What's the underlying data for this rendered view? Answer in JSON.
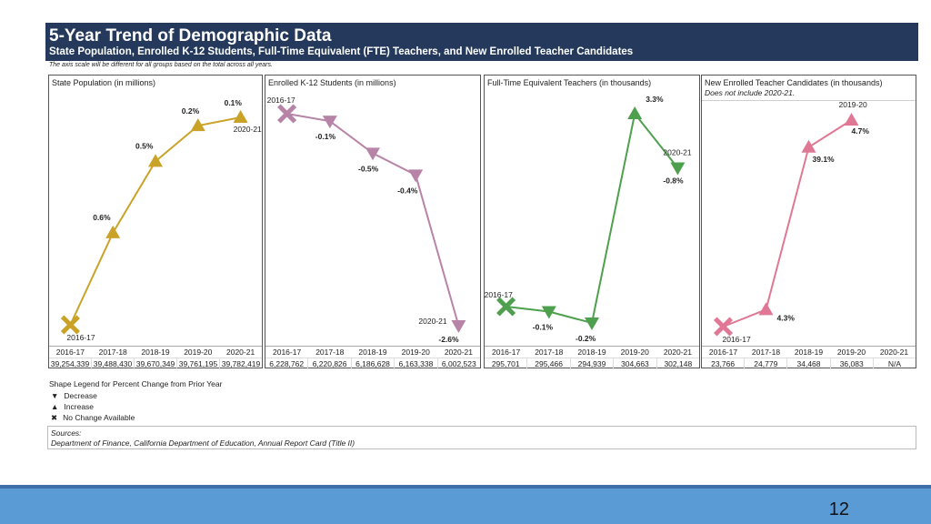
{
  "header": {
    "title": "5-Year Trend of Demographic Data",
    "subtitle": "State Population, Enrolled K-12 Students,  Full-Time Equivalent (FTE) Teachers, and New Enrolled Teacher Candidates"
  },
  "note": "The axis scale will be different for all groups based on the total across all years.",
  "chart_data": [
    {
      "type": "line",
      "title": "State Population (in millions)",
      "color": "#c9a227",
      "categories": [
        "2016-17",
        "2017-18",
        "2018-19",
        "2019-20",
        "2020-21"
      ],
      "table_values": [
        "39,254,339",
        "39,488,430",
        "39,670,349",
        "39,761,195",
        "39,782,419"
      ],
      "values": [
        39254339,
        39488430,
        39670349,
        39761195,
        39782419
      ],
      "shapes": [
        "x",
        "up",
        "up",
        "up",
        "up"
      ],
      "pct_labels": [
        "",
        "0.6%",
        "0.5%",
        "0.2%",
        "0.1%"
      ],
      "year_labels": [
        "2016-17",
        "",
        "",
        "",
        "2020-21"
      ]
    },
    {
      "type": "line",
      "title": "Enrolled K-12 Students (in millions)",
      "color": "#b784a7",
      "categories": [
        "2016-17",
        "2017-18",
        "2018-19",
        "2019-20",
        "2020-21"
      ],
      "table_values": [
        "6,228,762",
        "6,220,826",
        "6,186,628",
        "6,163,338",
        "6,002,523"
      ],
      "values": [
        6228762,
        6220826,
        6186628,
        6163338,
        6002523
      ],
      "shapes": [
        "x",
        "down",
        "down",
        "down",
        "down"
      ],
      "pct_labels": [
        "",
        "-0.1%",
        "-0.5%",
        "-0.4%",
        "-2.6%"
      ],
      "year_labels": [
        "2016-17",
        "",
        "",
        "",
        "2020-21"
      ]
    },
    {
      "type": "line",
      "title": "Full-Time Equivalent Teachers (in thousands)",
      "color": "#4ea04e",
      "categories": [
        "2016-17",
        "2017-18",
        "2018-19",
        "2019-20",
        "2020-21"
      ],
      "table_values": [
        "295,701",
        "295,466",
        "294,939",
        "304,663",
        "302,148"
      ],
      "values": [
        295701,
        295466,
        294939,
        304663,
        302148
      ],
      "shapes": [
        "x",
        "down",
        "down",
        "up",
        "down"
      ],
      "pct_labels": [
        "",
        "-0.1%",
        "-0.2%",
        "3.3%",
        "-0.8%"
      ],
      "year_labels": [
        "2016-17",
        "",
        "",
        "",
        "2020-21"
      ]
    },
    {
      "type": "line",
      "title": "New Enrolled Teacher Candidates (in thousands)",
      "subtitle": "Does not include 2020-21.",
      "color": "#e07895",
      "categories": [
        "2016-17",
        "2017-18",
        "2018-19",
        "2019-20",
        "2020-21"
      ],
      "table_values": [
        "23,766",
        "24,779",
        "34,468",
        "36,083",
        "N/A"
      ],
      "values": [
        23766,
        24779,
        34468,
        36083,
        null
      ],
      "shapes": [
        "x",
        "up",
        "up",
        "up",
        ""
      ],
      "pct_labels": [
        "",
        "4.3%",
        "39.1%",
        "4.7%",
        ""
      ],
      "year_labels": [
        "2016-17",
        "",
        "",
        "2019-20",
        ""
      ]
    }
  ],
  "legend": {
    "title": "Shape Legend for Percent Change from Prior Year",
    "items": [
      {
        "symbol": "▼",
        "label": "Decrease"
      },
      {
        "symbol": "▲",
        "label": "Increase"
      },
      {
        "symbol": "✖",
        "label": "No Change Available"
      }
    ]
  },
  "sources": {
    "label": "Sources:",
    "text": "Department of Finance, California Department of Education, Annual Report Card (Title II)"
  },
  "page_number": "12"
}
